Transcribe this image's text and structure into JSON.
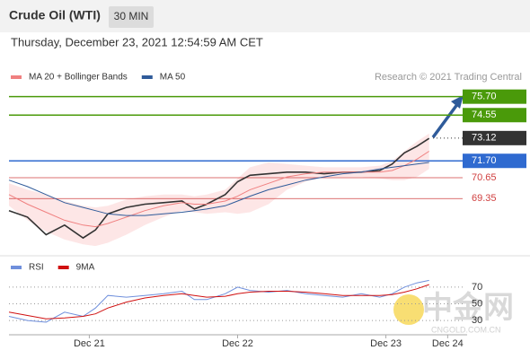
{
  "header": {
    "instrument": "Crude Oil (WTI)",
    "interval": "30 MIN",
    "timestamp": "Thursday, December 23, 2021 12:54:59 AM CET",
    "source": "Research © 2021 Trading Central"
  },
  "watermark": {
    "logo": "中金网",
    "site": "CNGOLD.COM.CN"
  },
  "chart_data": [
    {
      "type": "line",
      "xlim": [
        -13,
        61
      ],
      "ylim": [
        65.9,
        76.8
      ],
      "x": [
        -13,
        -10,
        -7,
        -4,
        -1,
        1,
        3,
        6,
        9,
        12,
        15,
        17,
        19,
        22,
        24,
        26,
        29,
        32,
        35,
        38,
        41,
        44,
        47,
        49,
        51,
        53,
        55
      ],
      "series": [
        {
          "name": "Price",
          "color": "#333333",
          "values": [
            68.6,
            68.2,
            67.1,
            67.7,
            66.9,
            67.4,
            68.4,
            68.8,
            69.0,
            69.1,
            69.2,
            68.7,
            69.0,
            69.6,
            70.4,
            70.8,
            70.9,
            71.0,
            71.0,
            70.9,
            71.0,
            71.0,
            71.1,
            71.5,
            72.2,
            72.6,
            73.1
          ]
        },
        {
          "name": "MA 20 + Bollinger Bands",
          "color": "#f08080",
          "values": [
            69.6,
            69.0,
            68.5,
            68.0,
            67.7,
            67.6,
            67.8,
            68.2,
            68.6,
            68.9,
            69.1,
            69.0,
            69.0,
            69.2,
            69.5,
            69.9,
            70.3,
            70.7,
            70.9,
            71.0,
            71.0,
            71.0,
            71.0,
            71.1,
            71.4,
            71.8,
            72.3
          ]
        },
        {
          "name": "MA 50",
          "color": "#2f5b9a",
          "values": [
            70.5,
            70.1,
            69.6,
            69.1,
            68.8,
            68.6,
            68.4,
            68.3,
            68.3,
            68.4,
            68.5,
            68.6,
            68.7,
            68.9,
            69.2,
            69.5,
            69.9,
            70.2,
            70.5,
            70.7,
            70.9,
            71.0,
            71.2,
            71.3,
            71.4,
            71.5,
            71.6
          ]
        }
      ],
      "bands": {
        "color": "#fbd5d5",
        "upper": [
          70.3,
          69.9,
          69.6,
          69.2,
          68.9,
          68.8,
          68.9,
          69.3,
          69.5,
          69.6,
          69.6,
          69.5,
          69.6,
          69.9,
          70.6,
          71.3,
          71.6,
          71.5,
          71.4,
          71.3,
          71.3,
          71.3,
          71.4,
          71.7,
          72.3,
          72.9,
          73.4
        ],
        "lower": [
          68.9,
          68.0,
          67.3,
          66.8,
          66.5,
          66.4,
          66.6,
          67.1,
          67.7,
          68.2,
          68.6,
          68.5,
          68.4,
          68.5,
          68.4,
          68.5,
          69.0,
          69.9,
          70.4,
          70.7,
          70.7,
          70.7,
          70.6,
          70.5,
          70.5,
          70.7,
          71.2
        ]
      },
      "levels": [
        {
          "value": 75.7,
          "label": "75.70",
          "color": "#4a9a0a",
          "boxed": true,
          "line": "solid"
        },
        {
          "value": 74.55,
          "label": "74.55",
          "color": "#4a9a0a",
          "boxed": true,
          "line": "solid"
        },
        {
          "value": 73.12,
          "label": "73.12",
          "color": "#333333",
          "boxed": true,
          "line": "dotted"
        },
        {
          "value": 71.7,
          "label": "71.70",
          "color": "#2f6ad0",
          "boxed": true,
          "line": "solid"
        },
        {
          "value": 70.65,
          "label": "70.65",
          "color": "#d04040",
          "boxed": false,
          "line": "solid"
        },
        {
          "value": 69.35,
          "label": "69.35",
          "color": "#d04040",
          "boxed": false,
          "line": "solid"
        }
      ]
    },
    {
      "type": "line",
      "xlim": [
        -13,
        61
      ],
      "ylim": [
        14,
        86
      ],
      "yticks": [
        30,
        50,
        70
      ],
      "grid": true,
      "xticks": [
        {
          "value": 0,
          "label": "Dec 21"
        },
        {
          "value": 24,
          "label": "Dec 22"
        },
        {
          "value": 48,
          "label": "Dec 23"
        },
        {
          "value": 58,
          "label": "Dec 24"
        }
      ],
      "x": [
        -13,
        -10,
        -7,
        -4,
        -1,
        1,
        3,
        6,
        9,
        12,
        15,
        17,
        19,
        22,
        24,
        26,
        29,
        32,
        35,
        38,
        41,
        44,
        47,
        49,
        51,
        53,
        55
      ],
      "series": [
        {
          "name": "RSI",
          "color": "#6f8fdc",
          "values": [
            35,
            30,
            28,
            40,
            35,
            45,
            60,
            58,
            60,
            62,
            65,
            55,
            55,
            62,
            70,
            66,
            64,
            66,
            62,
            60,
            58,
            62,
            58,
            62,
            70,
            75,
            78
          ]
        },
        {
          "name": "9MA",
          "color": "#d01010",
          "values": [
            40,
            36,
            32,
            33,
            35,
            38,
            45,
            52,
            57,
            60,
            62,
            60,
            58,
            59,
            62,
            64,
            65,
            65,
            64,
            62,
            60,
            60,
            60,
            61,
            64,
            68,
            73
          ]
        }
      ]
    }
  ]
}
